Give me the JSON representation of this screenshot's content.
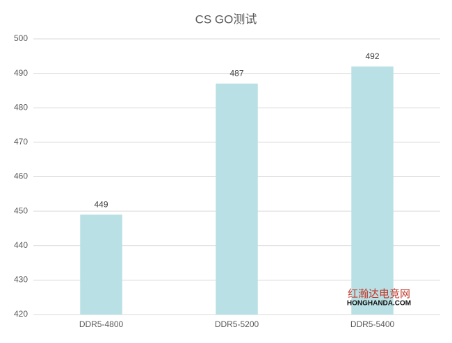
{
  "chart_data": {
    "type": "bar",
    "title": "CS GO测试",
    "categories": [
      "DDR5-4800",
      "DDR5-5200",
      "DDR5-5400"
    ],
    "values": [
      449,
      487,
      492
    ],
    "color": "#b9e0e4",
    "ylim": [
      420,
      500
    ],
    "yticks": [
      420,
      430,
      440,
      450,
      460,
      470,
      480,
      490,
      500
    ],
    "grid": true
  },
  "watermark": {
    "name": "红瀚达电竞网",
    "url": "HONGHANDA.COM"
  }
}
